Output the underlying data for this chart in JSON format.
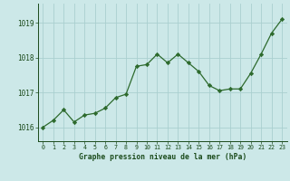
{
  "x": [
    0,
    1,
    2,
    3,
    4,
    5,
    6,
    7,
    8,
    9,
    10,
    11,
    12,
    13,
    14,
    15,
    16,
    17,
    18,
    19,
    20,
    21,
    22,
    23
  ],
  "y": [
    1016.0,
    1016.2,
    1016.5,
    1016.15,
    1016.35,
    1016.4,
    1016.55,
    1016.85,
    1016.95,
    1017.75,
    1017.8,
    1018.1,
    1017.85,
    1018.1,
    1017.85,
    1017.6,
    1017.2,
    1017.05,
    1017.1,
    1017.1,
    1017.55,
    1018.1,
    1018.7,
    1019.1
  ],
  "line_color": "#2d6a2d",
  "marker": "D",
  "marker_size": 2.2,
  "bg_color": "#cce8e8",
  "grid_color": "#aacfcf",
  "xlabel": "Graphe pression niveau de la mer (hPa)",
  "xlabel_color": "#1a4a1a",
  "tick_color": "#1a4a1a",
  "ylim": [
    1015.6,
    1019.55
  ],
  "yticks": [
    1016,
    1017,
    1018,
    1019
  ],
  "xticks": [
    0,
    1,
    2,
    3,
    4,
    5,
    6,
    7,
    8,
    9,
    10,
    11,
    12,
    13,
    14,
    15,
    16,
    17,
    18,
    19,
    20,
    21,
    22,
    23
  ]
}
